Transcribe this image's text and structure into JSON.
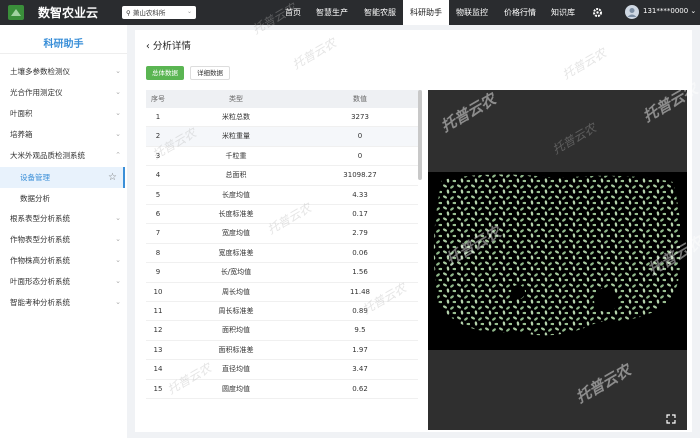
{
  "header": {
    "brand": "数智农业云",
    "location": "萧山农科所",
    "nav": [
      "首页",
      "智慧生产",
      "智能农服",
      "科研助手",
      "物联监控",
      "价格行情",
      "知识库"
    ],
    "active_nav": 3,
    "user": "131****0000"
  },
  "sidebar": {
    "title": "科研助手",
    "items": [
      {
        "label": "土壤多参数检测仪"
      },
      {
        "label": "光合作用测定仪"
      },
      {
        "label": "叶面积"
      },
      {
        "label": "培养箱"
      },
      {
        "label": "大米外观品质检测系统",
        "children": [
          "设备管理",
          "数据分析"
        ]
      },
      {
        "label": "根系表型分析系统"
      },
      {
        "label": "作物表型分析系统"
      },
      {
        "label": "作物株高分析系统"
      },
      {
        "label": "叶面形态分析系统"
      },
      {
        "label": "智能考种分析系统"
      }
    ]
  },
  "page": {
    "title": "分析详情",
    "tabs": [
      "总体数据",
      "详细数据"
    ]
  },
  "table": {
    "columns": [
      "序号",
      "类型",
      "数值"
    ],
    "rows": [
      [
        1,
        "米粒总数",
        3273
      ],
      [
        2,
        "米粒重量",
        0
      ],
      [
        3,
        "千粒重",
        0
      ],
      [
        4,
        "总面积",
        31098.27
      ],
      [
        5,
        "长度均值",
        4.33
      ],
      [
        6,
        "长度标准差",
        0.17
      ],
      [
        7,
        "宽度均值",
        2.79
      ],
      [
        8,
        "宽度标准差",
        0.06
      ],
      [
        9,
        "长/宽均值",
        1.56
      ],
      [
        10,
        "周长均值",
        11.48
      ],
      [
        11,
        "周长标准差",
        0.89
      ],
      [
        12,
        "面积均值",
        9.5
      ],
      [
        13,
        "面积标准差",
        1.97
      ],
      [
        14,
        "直径均值",
        3.47
      ],
      [
        15,
        "圆度均值",
        0.62
      ]
    ]
  },
  "watermark": "托普云农"
}
